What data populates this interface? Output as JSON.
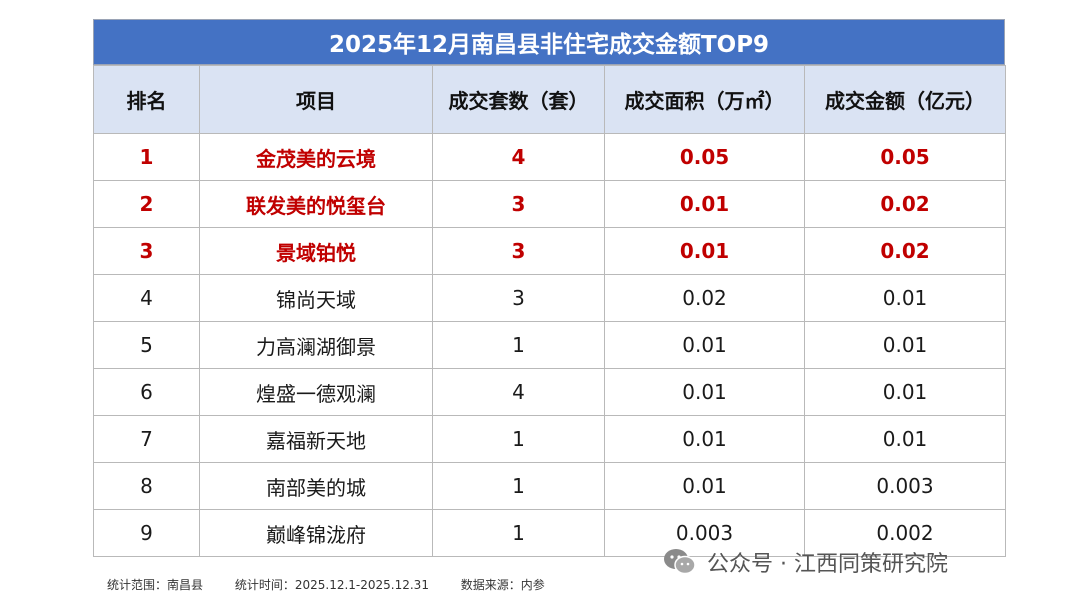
{
  "table": {
    "title": "2025年12月南昌县非住宅成交金额TOP9",
    "headers": [
      "排名",
      "项目",
      "成交套数（套）",
      "成交面积（万㎡）",
      "成交金额（亿元）"
    ],
    "rows": [
      {
        "rank": "1",
        "project": "金茂美的云境",
        "units": "4",
        "area": "0.05",
        "amount": "0.05",
        "highlight": true
      },
      {
        "rank": "2",
        "project": "联发美的悦玺台",
        "units": "3",
        "area": "0.01",
        "amount": "0.02",
        "highlight": true
      },
      {
        "rank": "3",
        "project": "景域铂悦",
        "units": "3",
        "area": "0.01",
        "amount": "0.02",
        "highlight": true
      },
      {
        "rank": "4",
        "project": "锦尚天域",
        "units": "3",
        "area": "0.02",
        "amount": "0.01",
        "highlight": false
      },
      {
        "rank": "5",
        "project": "力高澜湖御景",
        "units": "1",
        "area": "0.01",
        "amount": "0.01",
        "highlight": false
      },
      {
        "rank": "6",
        "project": "煌盛一德观澜",
        "units": "4",
        "area": "0.01",
        "amount": "0.01",
        "highlight": false
      },
      {
        "rank": "7",
        "project": "嘉福新天地",
        "units": "1",
        "area": "0.01",
        "amount": "0.01",
        "highlight": false
      },
      {
        "rank": "8",
        "project": "南部美的城",
        "units": "1",
        "area": "0.01",
        "amount": "0.003",
        "highlight": false
      },
      {
        "rank": "9",
        "project": "巅峰锦泷府",
        "units": "1",
        "area": "0.003",
        "amount": "0.002",
        "highlight": false
      }
    ]
  },
  "footnote": {
    "scope": "统计范围：南昌县",
    "period": "统计时间：2025.12.1-2025.12.31",
    "source": "数据来源：内参"
  },
  "watermark": {
    "icon": "wechat-icon",
    "text": "公众号 · 江西同策研究院"
  },
  "colors": {
    "title_bg": "#4472c4",
    "header_bg": "#dae3f3",
    "highlight_text": "#c00000"
  }
}
